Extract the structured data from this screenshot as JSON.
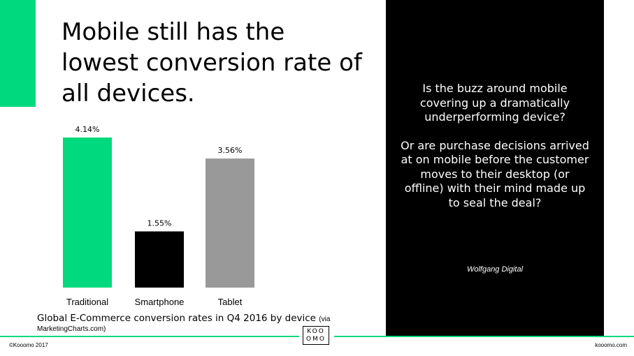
{
  "slide": {
    "title": "Mobile still has the lowest conversion rate of all devices.",
    "caption_main": "Global E-Commerce conversion rates in Q4 2016 by device",
    "caption_via": "(via",
    "caption_via_2": "MarketingCharts.com)"
  },
  "panel": {
    "question_1": "Is the buzz around mobile covering up a dramatically underperforming device?",
    "question_2": "Or are purchase decisions arrived at on mobile before the customer moves to their desktop (or offline) with their mind made up to seal the deal?",
    "source": "Wolfgang Digital"
  },
  "footer": {
    "copyright": "©Kooomo 2017",
    "website": "kooomo.com",
    "logo_line_1": "KOO",
    "logo_line_2": "OMO"
  },
  "colors": {
    "accent": "#00d97e",
    "panel_bg": "#000000",
    "bar_traditional": "#00d97e",
    "bar_smartphone": "#000000",
    "bar_tablet": "#999999"
  },
  "chart_data": {
    "type": "bar",
    "categories": [
      "Traditional",
      "Smartphone",
      "Tablet"
    ],
    "values": [
      4.14,
      1.55,
      3.56
    ],
    "value_labels": [
      "4.14%",
      "1.55%",
      "3.56%"
    ],
    "bar_colors": [
      "#00d97e",
      "#000000",
      "#999999"
    ],
    "ylim": [
      0,
      4.14
    ],
    "grid": false,
    "legend": "none"
  }
}
